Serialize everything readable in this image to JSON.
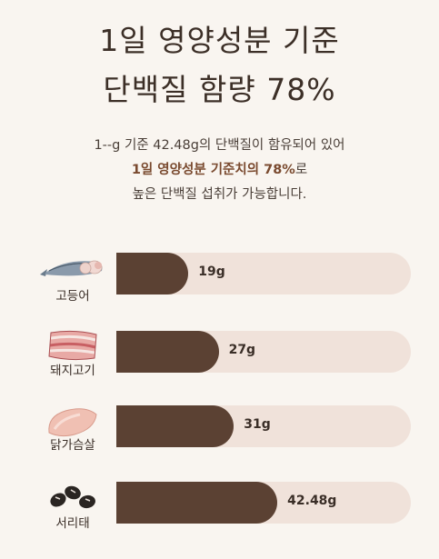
{
  "title": {
    "line1": "1일 영양성분 기준",
    "line2": "단백질 함량 78%"
  },
  "description": {
    "line1": "1--g 기준 42.48g의 단백질이 함유되어 있어",
    "line2_highlight": "1일 영양성분 기준치의 78%",
    "line2_suffix": "로",
    "line3": "높은 단백질 섭취가 가능합니다."
  },
  "chart_data": {
    "type": "bar",
    "categories": [
      "고등어",
      "돼지고기",
      "닭가슴살",
      "서리태"
    ],
    "values": [
      19,
      27,
      31,
      42.48
    ],
    "value_labels": [
      "19g",
      "27g",
      "31g",
      "42.48g"
    ],
    "unit": "g"
  },
  "items": [
    {
      "name": "고등어",
      "value": 19,
      "label": "19g",
      "icon": "mackerel-icon"
    },
    {
      "name": "돼지고기",
      "value": 27,
      "label": "27g",
      "icon": "pork-icon"
    },
    {
      "name": "닭가슴살",
      "value": 31,
      "label": "31g",
      "icon": "chicken-breast-icon"
    },
    {
      "name": "서리태",
      "value": 42.48,
      "label": "42.48g",
      "icon": "black-beans-icon"
    }
  ],
  "colors": {
    "bar_fill": "#5b4133",
    "bar_track": "#f0e2da",
    "highlight": "#7a4a2f",
    "background": "#f9f5f0"
  }
}
